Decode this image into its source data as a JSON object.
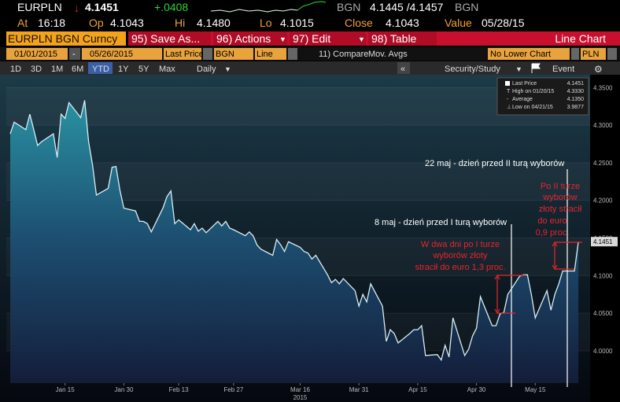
{
  "header": {
    "ticker": "EURPLN",
    "last": "4.1451",
    "change": "+.0408",
    "source": "BGN",
    "bid_ask": "4.1445 /4.1457",
    "source2": "BGN"
  },
  "quote": {
    "at_label": "At",
    "time": "16:18",
    "op_label": "Op",
    "op": "4.1043",
    "hi_label": "Hi",
    "hi": "4.1480",
    "lo_label": "Lo",
    "lo": "4.1015",
    "close_label": "Close",
    "close": "4.1043",
    "value_label": "Value",
    "value": "05/28/15"
  },
  "toolbar": {
    "security": "EURPLN BGN Curncy",
    "buttons": [
      "95) Save As...",
      "96) Actions",
      "97) Edit",
      "98) Table"
    ],
    "chart_kind": "Line Chart"
  },
  "settings": {
    "start": "01/01/2015",
    "dash": "-",
    "end": "05/26/2015",
    "field": "Last Price",
    "currency_source": "BGN",
    "style": "Line",
    "compare": "11) Compare",
    "studies": "Mov. Avgs",
    "lower": "No Lower Chart",
    "currency": "PLN"
  },
  "ranges": {
    "buttons": [
      "1D",
      "3D",
      "1M",
      "6M",
      "YTD",
      "1Y",
      "5Y",
      "Max"
    ],
    "period": "Daily",
    "back": "«",
    "study": "Security/Study",
    "event": "Event"
  },
  "chart_data": {
    "type": "area",
    "color": "#d8eef4",
    "x": [
      "2015-01-01",
      "2015-01-02",
      "2015-01-05",
      "2015-01-06",
      "2015-01-07",
      "2015-01-08",
      "2015-01-09",
      "2015-01-12",
      "2015-01-13",
      "2015-01-14",
      "2015-01-15",
      "2015-01-16",
      "2015-01-19",
      "2015-01-20",
      "2015-01-21",
      "2015-01-22",
      "2015-01-23",
      "2015-01-26",
      "2015-01-27",
      "2015-01-28",
      "2015-01-29",
      "2015-01-30",
      "2015-02-02",
      "2015-02-03",
      "2015-02-04",
      "2015-02-05",
      "2015-02-06",
      "2015-02-09",
      "2015-02-10",
      "2015-02-11",
      "2015-02-12",
      "2015-02-13",
      "2015-02-16",
      "2015-02-17",
      "2015-02-18",
      "2015-02-19",
      "2015-02-20",
      "2015-02-23",
      "2015-02-24",
      "2015-02-25",
      "2015-02-26",
      "2015-02-27",
      "2015-03-02",
      "2015-03-03",
      "2015-03-04",
      "2015-03-05",
      "2015-03-06",
      "2015-03-09",
      "2015-03-10",
      "2015-03-11",
      "2015-03-12",
      "2015-03-13",
      "2015-03-16",
      "2015-03-17",
      "2015-03-18",
      "2015-03-19",
      "2015-03-20",
      "2015-03-23",
      "2015-03-24",
      "2015-03-25",
      "2015-03-26",
      "2015-03-27",
      "2015-03-30",
      "2015-03-31",
      "2015-04-01",
      "2015-04-02",
      "2015-04-03",
      "2015-04-06",
      "2015-04-07",
      "2015-04-08",
      "2015-04-09",
      "2015-04-10",
      "2015-04-13",
      "2015-04-14",
      "2015-04-15",
      "2015-04-16",
      "2015-04-17",
      "2015-04-20",
      "2015-04-21",
      "2015-04-22",
      "2015-04-23",
      "2015-04-24",
      "2015-04-27",
      "2015-04-28",
      "2015-04-29",
      "2015-04-30",
      "2015-05-01",
      "2015-05-04",
      "2015-05-05",
      "2015-05-06",
      "2015-05-07",
      "2015-05-08",
      "2015-05-11",
      "2015-05-12",
      "2015-05-13",
      "2015-05-14",
      "2015-05-15",
      "2015-05-18",
      "2015-05-19",
      "2015-05-20",
      "2015-05-21",
      "2015-05-22",
      "2015-05-25",
      "2015-05-26"
    ],
    "values": [
      4.2885,
      4.304,
      4.294,
      4.3146,
      4.294,
      4.273,
      4.278,
      4.2885,
      4.257,
      4.3146,
      4.309,
      4.33,
      4.31,
      4.333,
      4.278,
      4.247,
      4.207,
      4.216,
      4.244,
      4.245,
      4.2135,
      4.1896,
      4.186,
      4.172,
      4.172,
      4.169,
      4.158,
      4.19,
      4.205,
      4.2125,
      4.169,
      4.174,
      4.161,
      4.169,
      4.159,
      4.163,
      4.157,
      4.172,
      4.166,
      4.172,
      4.163,
      4.161,
      4.153,
      4.158,
      4.153,
      4.1406,
      4.135,
      4.127,
      4.148,
      4.141,
      4.132,
      4.145,
      4.1375,
      4.132,
      4.13,
      4.122,
      4.127,
      4.101,
      4.0906,
      4.095,
      4.089,
      4.096,
      4.08,
      4.0594,
      4.075,
      4.065,
      4.089,
      4.0594,
      4.0125,
      4.028,
      4.023,
      4.0104,
      4.023,
      4.028,
      4.028,
      4.0333,
      3.9937,
      3.995,
      3.9877,
      4.0073,
      3.9917,
      4.0437,
      3.9937,
      4.002,
      4.0198,
      4.03,
      4.0719,
      4.0333,
      4.0333,
      4.049,
      4.051,
      4.075,
      4.099,
      4.101,
      4.101,
      4.075,
      4.0437,
      4.08,
      4.054,
      4.075,
      4.089,
      4.106,
      4.106,
      4.1451
    ],
    "xlim": [
      "2014-12-31",
      "2015-05-29"
    ],
    "xticks": [
      {
        "value": "2015-01-15",
        "label": "Jan 15"
      },
      {
        "value": "2015-01-30",
        "label": "Jan 30"
      },
      {
        "value": "2015-02-13",
        "label": "Feb 13"
      },
      {
        "value": "2015-02-27",
        "label": "Feb 27"
      },
      {
        "value": "2015-03-16",
        "label": "Mar 16"
      },
      {
        "value": "2015-03-31",
        "label": "Mar 31"
      },
      {
        "value": "2015-04-15",
        "label": "Apr 15"
      },
      {
        "value": "2015-04-30",
        "label": "Apr 30"
      },
      {
        "value": "2015-05-15",
        "label": "May 15"
      }
    ],
    "x_year": "2015",
    "ylim": [
      3.957,
      4.367
    ],
    "yticks": [
      {
        "value": 4.35,
        "label": "4.3500"
      },
      {
        "value": 4.3,
        "label": "4.3000"
      },
      {
        "value": 4.25,
        "label": "4.2500"
      },
      {
        "value": 4.2,
        "label": "4.2000"
      },
      {
        "value": 4.15,
        "label": "4.1500"
      },
      {
        "value": 4.1,
        "label": "4.1000"
      },
      {
        "value": 4.05,
        "label": "4.0500"
      },
      {
        "value": 4,
        "label": "4.0000"
      }
    ],
    "grid": true,
    "stats": [
      {
        "label": "Last Price",
        "value": "4.1451"
      },
      {
        "label": "High on 01/20/15",
        "value": "4.3330"
      },
      {
        "label": "Average",
        "value": "4.1350"
      },
      {
        "label": "Low on 04/21/15",
        "value": "3.9877"
      }
    ],
    "annotations": {
      "second_round": "22 maj - dzień przed II turą wyborów",
      "first_round": "8 maj - dzień przed I turą wyborów",
      "after_first": [
        "W dwa dni po I turze",
        "wyborów złoty",
        "stracił do euro 1,3 proc."
      ],
      "after_second": [
        "Po II turze",
        "wyborów",
        "złoty stracił",
        "do euro",
        "0,9 proc."
      ]
    }
  }
}
